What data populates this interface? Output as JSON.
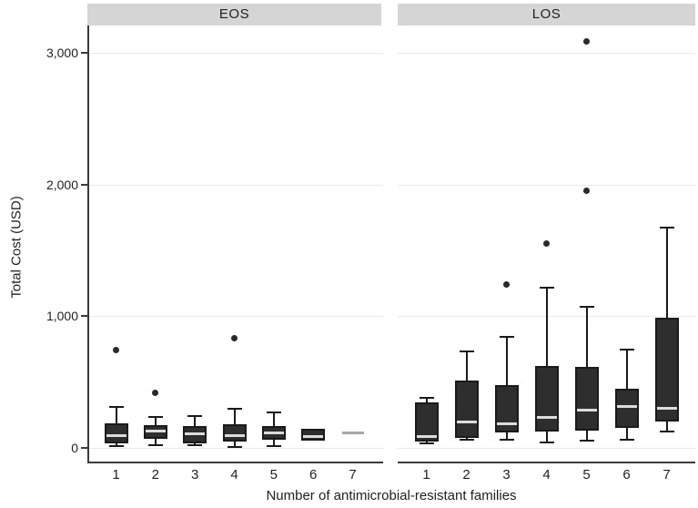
{
  "chart_data": {
    "type": "boxplot",
    "title": "",
    "xlabel": "Number of antimicrobial-resistant families",
    "ylabel": "Total Cost (USD)",
    "ylim": [
      0,
      3200
    ],
    "yticks": [
      0,
      1000,
      2000,
      3000
    ],
    "ytick_labels": [
      "0",
      "1,000",
      "2,000",
      "3,000"
    ],
    "categories": [
      "1",
      "2",
      "3",
      "4",
      "5",
      "6",
      "7"
    ],
    "grid": "major-horizontal-only",
    "legend": "none",
    "panels": [
      {
        "label": "EOS",
        "boxes": [
          {
            "category": "1",
            "low": 15,
            "q1": 35,
            "median": 90,
            "q3": 185,
            "high": 310,
            "outliers": [
              745
            ]
          },
          {
            "category": "2",
            "low": 20,
            "q1": 70,
            "median": 125,
            "q3": 175,
            "high": 235,
            "outliers": [
              415
            ]
          },
          {
            "category": "3",
            "low": 20,
            "q1": 35,
            "median": 105,
            "q3": 165,
            "high": 240,
            "outliers": []
          },
          {
            "category": "4",
            "low": 10,
            "q1": 50,
            "median": 95,
            "q3": 180,
            "high": 295,
            "outliers": [
              830
            ]
          },
          {
            "category": "5",
            "low": 15,
            "q1": 60,
            "median": 115,
            "q3": 165,
            "high": 270,
            "outliers": []
          },
          {
            "category": "6",
            "low": 55,
            "q1": 55,
            "median": 85,
            "q3": 145,
            "high": 145,
            "outliers": []
          },
          {
            "category": "7",
            "single": 115,
            "outliers": []
          }
        ]
      },
      {
        "label": "LOS",
        "boxes": [
          {
            "category": "1",
            "low": 35,
            "q1": 50,
            "median": 85,
            "q3": 345,
            "high": 380,
            "outliers": []
          },
          {
            "category": "2",
            "low": 60,
            "q1": 75,
            "median": 200,
            "q3": 510,
            "high": 735,
            "outliers": []
          },
          {
            "category": "3",
            "low": 60,
            "q1": 115,
            "median": 185,
            "q3": 475,
            "high": 840,
            "outliers": [
              1240
            ]
          },
          {
            "category": "4",
            "low": 40,
            "q1": 125,
            "median": 230,
            "q3": 620,
            "high": 1220,
            "outliers": [
              1550
            ]
          },
          {
            "category": "5",
            "low": 55,
            "q1": 130,
            "median": 290,
            "q3": 615,
            "high": 1070,
            "outliers": [
              1950,
              3085
            ]
          },
          {
            "category": "6",
            "low": 60,
            "q1": 150,
            "median": 315,
            "q3": 450,
            "high": 750,
            "outliers": []
          },
          {
            "category": "7",
            "low": 125,
            "q1": 200,
            "median": 300,
            "q3": 990,
            "high": 1675,
            "outliers": []
          }
        ]
      }
    ],
    "colors": {
      "box_fill": "#2e2e2e",
      "box_border": "#1a1a1a",
      "median_line": "#dcdcdc",
      "single_value_line": "#a6a6a6",
      "outlier": "#2a2a2a",
      "axis_line": "#3a3a3a",
      "gridline": "#eaeaea",
      "strip_background": "#d5d5d5",
      "text": "#1f1f1f"
    }
  }
}
